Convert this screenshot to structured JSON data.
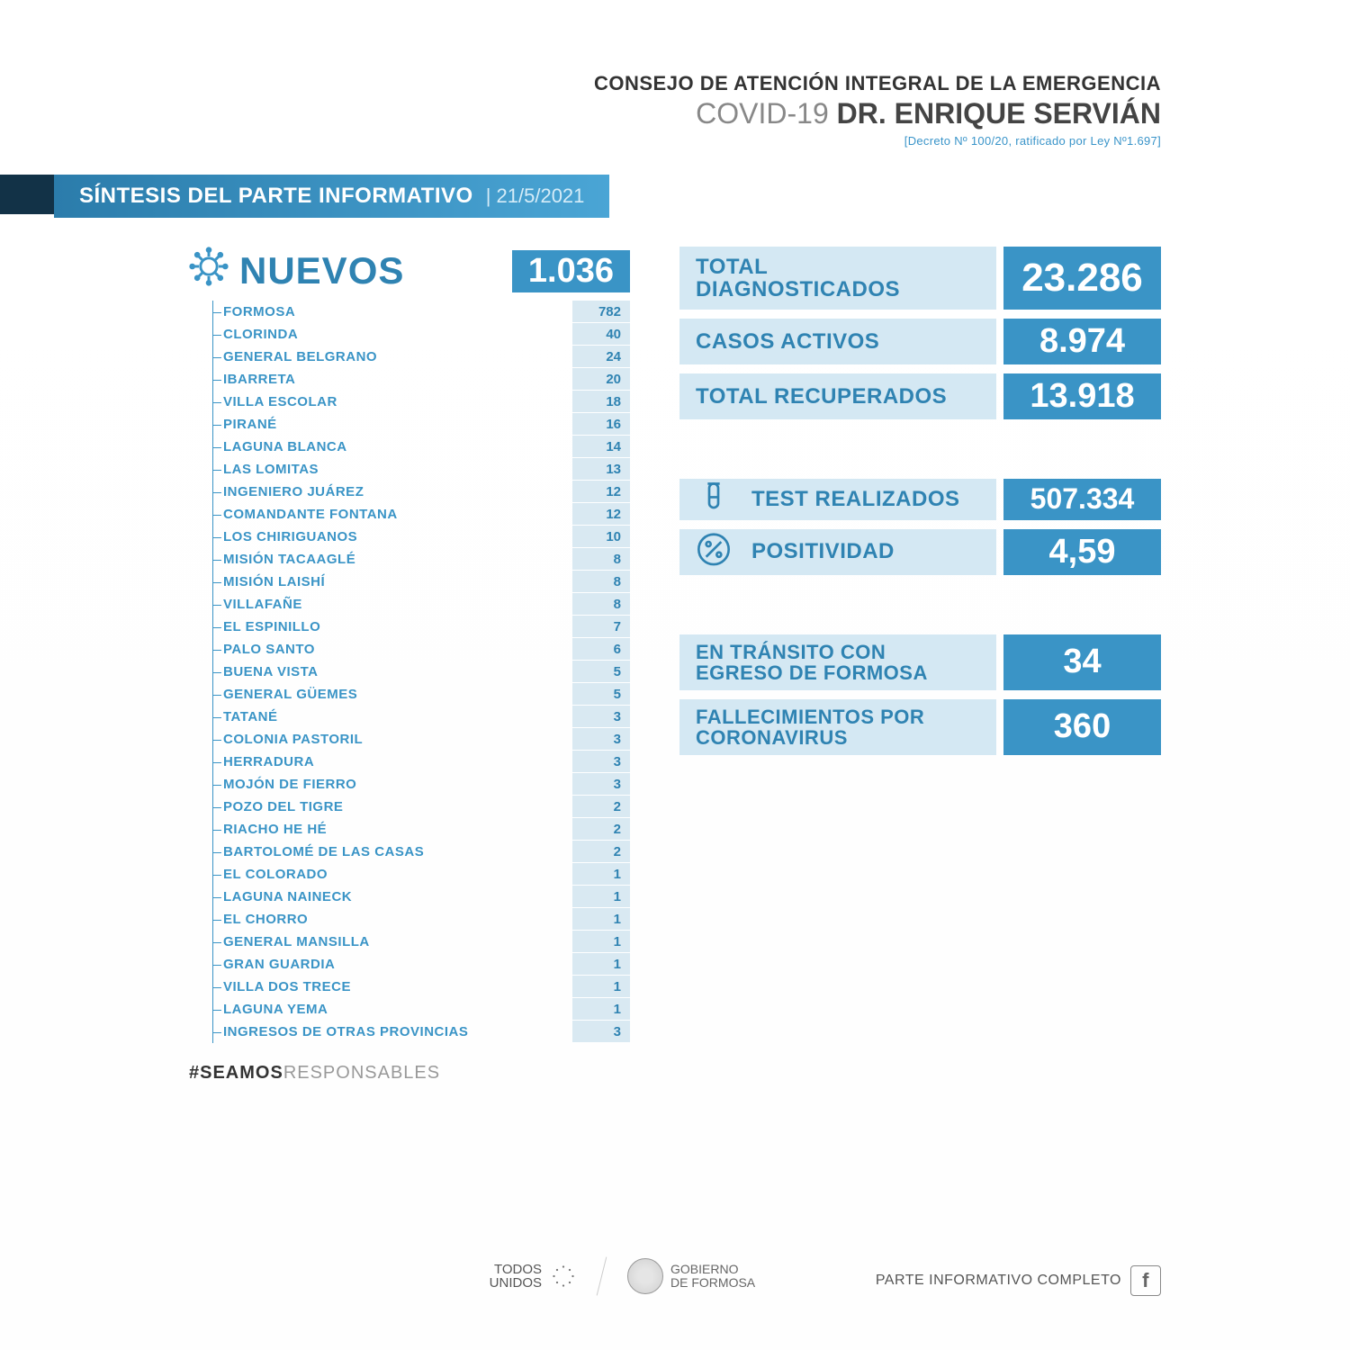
{
  "header": {
    "council": "CONSEJO DE ATENCIÓN INTEGRAL DE LA EMERGENCIA",
    "covid": "COVID-19",
    "doctor": "DR. ENRIQUE SERVIÁN",
    "decree": "[Decreto Nº 100/20, ratificado por Ley Nº1.697]"
  },
  "title": {
    "text": "SÍNTESIS DEL PARTE INFORMATIVO",
    "date": "21/5/2021"
  },
  "nuevos": {
    "label": "NUEVOS",
    "total": "1.036",
    "rows": [
      {
        "name": "FORMOSA",
        "value": "782"
      },
      {
        "name": "CLORINDA",
        "value": "40"
      },
      {
        "name": "GENERAL BELGRANO",
        "value": "24"
      },
      {
        "name": "IBARRETA",
        "value": "20"
      },
      {
        "name": "VILLA ESCOLAR",
        "value": "18"
      },
      {
        "name": "PIRANÉ",
        "value": "16"
      },
      {
        "name": "LAGUNA BLANCA",
        "value": "14"
      },
      {
        "name": "LAS LOMITAS",
        "value": "13"
      },
      {
        "name": "INGENIERO JUÁREZ",
        "value": "12"
      },
      {
        "name": "COMANDANTE FONTANA",
        "value": "12"
      },
      {
        "name": "LOS CHIRIGUANOS",
        "value": "10"
      },
      {
        "name": "MISIÓN TACAAGLÉ",
        "value": "8"
      },
      {
        "name": "MISIÓN LAISHÍ",
        "value": "8"
      },
      {
        "name": "VILLAFAÑE",
        "value": "8"
      },
      {
        "name": "EL ESPINILLO",
        "value": "7"
      },
      {
        "name": "PALO SANTO",
        "value": "6"
      },
      {
        "name": "BUENA VISTA",
        "value": "5"
      },
      {
        "name": "GENERAL GÜEMES",
        "value": "5"
      },
      {
        "name": "TATANÉ",
        "value": "3"
      },
      {
        "name": "COLONIA PASTORIL",
        "value": "3"
      },
      {
        "name": "HERRADURA",
        "value": "3"
      },
      {
        "name": "MOJÓN DE FIERRO",
        "value": "3"
      },
      {
        "name": "POZO DEL TIGRE",
        "value": "2"
      },
      {
        "name": "RIACHO HE HÉ",
        "value": "2"
      },
      {
        "name": "BARTOLOMÉ DE LAS CASAS",
        "value": "2"
      },
      {
        "name": "EL COLORADO",
        "value": "1"
      },
      {
        "name": "LAGUNA NAINECK",
        "value": "1"
      },
      {
        "name": "EL CHORRO",
        "value": "1"
      },
      {
        "name": "GENERAL MANSILLA",
        "value": "1"
      },
      {
        "name": "GRAN GUARDIA",
        "value": "1"
      },
      {
        "name": "VILLA DOS TRECE",
        "value": "1"
      },
      {
        "name": "LAGUNA YEMA",
        "value": "1"
      },
      {
        "name": "INGRESOS DE OTRAS PROVINCIAS",
        "value": "3"
      }
    ]
  },
  "stats": {
    "diagnosed_label": "TOTAL\nDIAGNOSTICADOS",
    "diagnosed_value": "23.286",
    "active_label": "CASOS ACTIVOS",
    "active_value": "8.974",
    "recovered_label": "TOTAL RECUPERADOS",
    "recovered_value": "13.918",
    "tests_label": "TEST REALIZADOS",
    "tests_value": "507.334",
    "positivity_label": "POSITIVIDAD",
    "positivity_value": "4,59",
    "transit_label": "EN TRÁNSITO CON\nEGRESO DE FORMOSA",
    "transit_value": "34",
    "deaths_label": "FALLECIMIENTOS POR\nCORONAVIRUS",
    "deaths_value": "360"
  },
  "hashtag": {
    "bold": "#SEAMOS",
    "light": "RESPONSABLES"
  },
  "footer": {
    "parte": "PARTE INFORMATIVO COMPLETO",
    "todos1": "TODOS",
    "todos2": "UNIDOS",
    "gob1": "GOBIERNO",
    "gob2": "DE FORMOSA"
  },
  "colors": {
    "brand": "#3a94c6",
    "light": "#d4e8f3",
    "text": "#2f83b2"
  }
}
